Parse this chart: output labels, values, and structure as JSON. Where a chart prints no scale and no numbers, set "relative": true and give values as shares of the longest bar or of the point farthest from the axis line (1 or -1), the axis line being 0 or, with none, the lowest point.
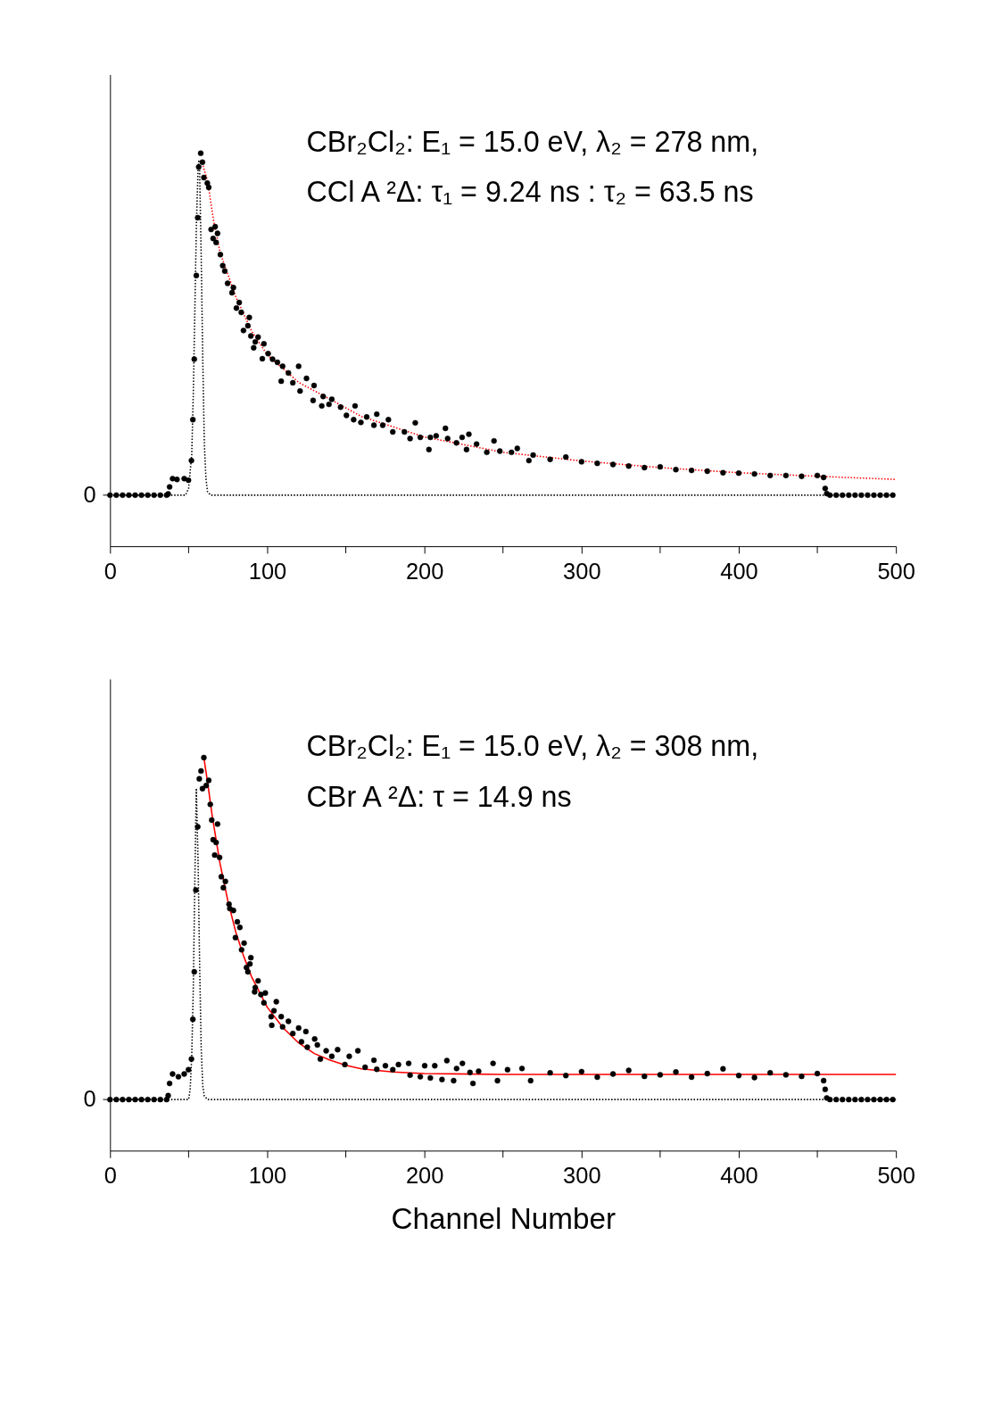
{
  "chart_data": [
    {
      "type": "scatter",
      "relative": true,
      "xlim": [
        0,
        500
      ],
      "xticks": [
        0,
        {
          "value": 50,
          "label": null
        },
        100,
        {
          "value": 150,
          "label": null
        },
        200,
        {
          "value": 250,
          "label": null
        },
        300,
        {
          "value": 350,
          "label": null
        },
        400,
        {
          "value": 450,
          "label": null
        },
        500
      ],
      "grid": false,
      "annotations": [
        "CBr₂Cl₂: E₁ = 15.0 eV, λ₂ = 278 nm,",
        "CCl A ²Δ: τ₁ = 9.24 ns : τ₂ = 63.5 ns",
        "0"
      ],
      "series": [
        {
          "type": "scatter",
          "marker": "circle",
          "color": "#000000",
          "x": [
            0,
            4,
            8,
            12,
            16,
            20,
            24,
            28,
            32,
            36,
            37.0,
            37.9,
            39.8,
            42.6,
            47.2,
            49.9,
            51.8,
            52.7,
            53.6,
            54.9,
            55.8,
            56.4,
            57.7,
            58.8,
            59.7,
            61.9,
            62.8,
            64.3,
            66.9,
            65.6,
            68.4,
            67.5,
            70.2,
            71.7,
            73.0,
            74.8,
            78.5,
            77.6,
            82.2,
            80.4,
            83.5,
            88.6,
            87.7,
            84.9,
            89.6,
            94.2,
            92.4,
            91.4,
            97.9,
            100.6,
            96.9,
            103.4,
            106.5,
            109.8,
            108.9,
            120.0,
            113.5,
            116.3,
            120.9,
            125.0,
            129.8,
            129.2,
            135.6,
            134.7,
            141.1,
            139.3,
            146.7,
            150.4,
            155.9,
            155.0,
            159.6,
            163.3,
            169.7,
            167.9,
            173.5,
            177.1,
            179.9,
            187.3,
            194.2,
            190.9,
            197.4,
            202.9,
            203.8,
            207.5,
            213.4,
            214.8,
            220.4,
            224.0,
            228.3,
            226.8,
            233.2,
            239.7,
            244.3,
            248.0,
            255.4,
            259.1,
            266.5,
            269.2,
            280,
            290,
            300,
            310,
            320,
            330,
            340,
            350,
            360,
            370,
            380,
            390,
            400,
            410,
            420,
            430,
            440,
            450,
            454,
            455,
            456,
            458,
            462,
            466,
            470,
            474,
            478,
            482,
            486,
            490,
            494,
            498
          ],
          "values": [
            0.13,
            0.13,
            0.13,
            0.13,
            0.13,
            0.13,
            0.13,
            0.13,
            0.13,
            0.13,
            0.133,
            0.151,
            0.172,
            0.17,
            0.172,
            0.168,
            0.218,
            0.322,
            0.476,
            0.689,
            0.836,
            0.965,
            1.0,
            0.977,
            0.938,
            0.924,
            0.913,
            0.806,
            0.813,
            0.783,
            0.796,
            0.773,
            0.742,
            0.714,
            0.7,
            0.669,
            0.658,
            0.645,
            0.62,
            0.606,
            0.595,
            0.582,
            0.561,
            0.549,
            0.535,
            0.532,
            0.52,
            0.505,
            0.515,
            0.49,
            0.477,
            0.476,
            0.468,
            0.458,
            0.42,
            0.458,
            0.441,
            0.416,
            0.395,
            0.427,
            0.409,
            0.371,
            0.381,
            0.357,
            0.374,
            0.361,
            0.354,
            0.333,
            0.357,
            0.322,
            0.315,
            0.329,
            0.336,
            0.308,
            0.308,
            0.322,
            0.291,
            0.291,
            0.314,
            0.274,
            0.277,
            0.246,
            0.277,
            0.281,
            0.3,
            0.274,
            0.263,
            0.277,
            0.285,
            0.246,
            0.26,
            0.239,
            0.268,
            0.242,
            0.239,
            0.249,
            0.218,
            0.232,
            0.221,
            0.227,
            0.215,
            0.211,
            0.208,
            0.204,
            0.2,
            0.202,
            0.195,
            0.193,
            0.191,
            0.187,
            0.186,
            0.184,
            0.18,
            0.18,
            0.178,
            0.18,
            0.175,
            0.147,
            0.134,
            0.13,
            0.13,
            0.13,
            0.13,
            0.13,
            0.13,
            0.13,
            0.13,
            0.13,
            0.13,
            0.13
          ]
        },
        {
          "type": "line",
          "line_style": "dotted",
          "color": "#000000",
          "x": [
            0,
            48,
            50,
            52,
            53,
            54,
            55,
            56,
            56.5,
            57,
            58,
            59,
            60,
            61,
            62,
            64,
            500
          ],
          "values": [
            0.13,
            0.13,
            0.147,
            0.234,
            0.391,
            0.609,
            0.826,
            0.957,
            0.983,
            0.957,
            0.739,
            0.478,
            0.261,
            0.174,
            0.139,
            0.13,
            0.13
          ]
        },
        {
          "type": "line",
          "line_style": "dotted",
          "color": "#ff0000",
          "x": [
            58,
            62,
            66,
            70,
            80,
            90,
            100,
            120,
            140,
            160,
            180,
            200,
            250,
            300,
            350,
            400,
            450,
            500
          ],
          "values": [
            0.983,
            0.93,
            0.826,
            0.748,
            0.635,
            0.548,
            0.487,
            0.417,
            0.374,
            0.33,
            0.304,
            0.278,
            0.239,
            0.217,
            0.2,
            0.187,
            0.178,
            0.17
          ]
        }
      ]
    },
    {
      "type": "scatter",
      "relative": true,
      "xlim": [
        0,
        500
      ],
      "xticks": [
        0,
        {
          "value": 50,
          "label": null
        },
        100,
        {
          "value": 150,
          "label": null
        },
        200,
        {
          "value": 250,
          "label": null
        },
        300,
        {
          "value": 350,
          "label": null
        },
        400,
        {
          "value": 450,
          "label": null
        },
        500
      ],
      "xlabel": "Channel Number",
      "grid": false,
      "annotations": [
        "CBr₂Cl₂: E₁ = 15.0 eV, λ₂ = 308 nm,",
        "CBr A ²Δ: τ = 14.9 ns",
        "0"
      ],
      "series": [
        {
          "type": "scatter",
          "marker": "circle",
          "color": "#000000",
          "x": [
            0,
            4,
            8,
            12,
            16,
            20,
            24,
            28,
            32,
            36,
            37.0,
            37.9,
            39.8,
            43.5,
            47.2,
            49.9,
            51.8,
            52.7,
            53.6,
            54.6,
            55.8,
            56.8,
            57.9,
            58.8,
            59.7,
            61.2,
            62.8,
            63.8,
            64.7,
            68.4,
            65.6,
            67.5,
            66.6,
            69.7,
            70.8,
            73.4,
            72.1,
            75.7,
            78.5,
            76.2,
            81.0,
            82.6,
            79.8,
            85.3,
            83.7,
            89.6,
            89.0,
            86.8,
            87.7,
            94.2,
            92.4,
            92.0,
            98.8,
            96.0,
            97.9,
            105.8,
            104.3,
            102.5,
            108.9,
            102.9,
            109.8,
            113.5,
            116.3,
            120.0,
            124.6,
            121.8,
            130.2,
            125.5,
            131.9,
            133.8,
            137.5,
            141.1,
            144.8,
            149.4,
            152.2,
            157.7,
            162.3,
            167.9,
            169.7,
            175.2,
            179.9,
            183.5,
            190.9,
            190.0,
            197.4,
            200.2,
            203.8,
            206.6,
            211.2,
            214.3,
            218.6,
            224.2,
            220.5,
            230.9,
            229.0,
            234.5,
            243.7,
            246.5,
            252.9,
            262.1,
            267.6,
            280,
            290,
            300,
            310,
            320,
            330,
            340,
            350,
            360,
            370,
            380,
            390,
            400,
            410,
            420,
            430,
            440,
            450,
            454,
            455,
            456,
            458,
            462,
            466,
            470,
            474,
            478,
            482,
            486,
            490,
            494,
            498
          ],
          "values": [
            0.13,
            0.13,
            0.13,
            0.13,
            0.13,
            0.13,
            0.13,
            0.13,
            0.13,
            0.13,
            0.14,
            0.171,
            0.195,
            0.188,
            0.195,
            0.206,
            0.233,
            0.334,
            0.455,
            0.663,
            0.824,
            0.946,
            0.966,
            0.921,
            1.0,
            0.929,
            0.942,
            0.881,
            0.841,
            0.831,
            0.791,
            0.784,
            0.752,
            0.746,
            0.697,
            0.685,
            0.669,
            0.627,
            0.611,
            0.616,
            0.582,
            0.568,
            0.542,
            0.528,
            0.511,
            0.491,
            0.475,
            0.466,
            0.455,
            0.432,
            0.415,
            0.404,
            0.401,
            0.397,
            0.376,
            0.379,
            0.356,
            0.341,
            0.341,
            0.319,
            0.315,
            0.329,
            0.298,
            0.312,
            0.303,
            0.277,
            0.284,
            0.263,
            0.269,
            0.233,
            0.254,
            0.24,
            0.257,
            0.219,
            0.24,
            0.254,
            0.212,
            0.23,
            0.207,
            0.216,
            0.206,
            0.219,
            0.192,
            0.222,
            0.188,
            0.216,
            0.185,
            0.216,
            0.181,
            0.229,
            0.178,
            0.222,
            0.209,
            0.171,
            0.199,
            0.202,
            0.222,
            0.178,
            0.206,
            0.209,
            0.178,
            0.198,
            0.191,
            0.201,
            0.187,
            0.195,
            0.204,
            0.189,
            0.193,
            0.2,
            0.187,
            0.196,
            0.208,
            0.191,
            0.186,
            0.198,
            0.193,
            0.189,
            0.196,
            0.178,
            0.156,
            0.134,
            0.13,
            0.13,
            0.13,
            0.13,
            0.13,
            0.13,
            0.13,
            0.13,
            0.13,
            0.13,
            0.13
          ]
        },
        {
          "type": "line",
          "line_style": "dotted",
          "color": "#000000",
          "x": [
            0,
            50,
            51,
            52,
            53,
            54,
            54.9,
            56,
            57,
            58,
            59,
            60,
            62,
            500
          ],
          "values": [
            0.13,
            0.13,
            0.156,
            0.243,
            0.417,
            0.696,
            0.922,
            0.739,
            0.478,
            0.261,
            0.165,
            0.139,
            0.13,
            0.13
          ]
        },
        {
          "type": "line",
          "line_style": "solid",
          "color": "#ff0000",
          "x": [
            59.7,
            62,
            65,
            70,
            75,
            80,
            85,
            90,
            100,
            110,
            120,
            130,
            140,
            150,
            160,
            180,
            200,
            250,
            300,
            500
          ],
          "values": [
            1.0,
            0.939,
            0.852,
            0.73,
            0.635,
            0.556,
            0.495,
            0.443,
            0.365,
            0.313,
            0.274,
            0.247,
            0.23,
            0.217,
            0.208,
            0.2,
            0.196,
            0.194,
            0.194,
            0.194
          ]
        }
      ]
    }
  ]
}
